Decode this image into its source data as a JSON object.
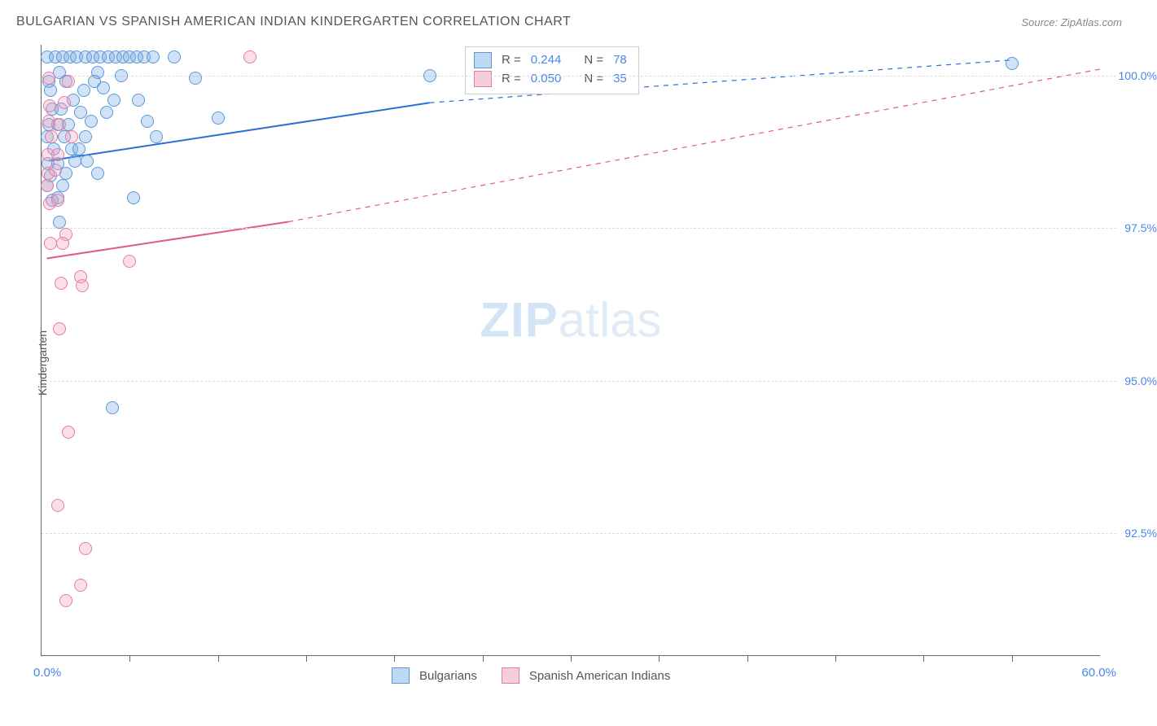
{
  "title": "BULGARIAN VS SPANISH AMERICAN INDIAN KINDERGARTEN CORRELATION CHART",
  "source": "Source: ZipAtlas.com",
  "y_axis_title": "Kindergarten",
  "watermark_zip": "ZIP",
  "watermark_atlas": "atlas",
  "chart": {
    "type": "scatter",
    "xlim": [
      0.0,
      60.0
    ],
    "ylim": [
      90.5,
      100.5
    ],
    "x_label_min": "0.0%",
    "x_label_max": "60.0%",
    "y_ticks": [
      92.5,
      95.0,
      97.5,
      100.0
    ],
    "y_tick_labels": [
      "92.5%",
      "95.0%",
      "97.5%",
      "100.0%"
    ],
    "x_ticks": [
      5,
      10,
      15,
      20,
      25,
      30,
      35,
      40,
      45,
      50,
      55
    ],
    "grid_color": "#dddddd",
    "background_color": "#ffffff",
    "marker_radius": 8,
    "marker_stroke_width": 1.5,
    "series": [
      {
        "name": "Bulgarians",
        "fill": "rgba(122,172,230,0.35)",
        "stroke": "#5a98d8",
        "swatch_fill": "#bfd9f2",
        "swatch_stroke": "#5a98d8",
        "R": "0.244",
        "N": "78",
        "trend": {
          "solid": {
            "x1": 0.4,
            "y1": 98.6,
            "x2": 22.0,
            "y2": 99.55
          },
          "dashed": {
            "x1": 22.0,
            "y1": 99.55,
            "x2": 55.0,
            "y2": 100.25
          },
          "color": "#2a6fd6",
          "width": 2
        },
        "points": [
          [
            0.3,
            100.3
          ],
          [
            0.8,
            100.3
          ],
          [
            1.2,
            100.3
          ],
          [
            1.6,
            100.3
          ],
          [
            2.0,
            100.3
          ],
          [
            2.5,
            100.3
          ],
          [
            2.9,
            100.3
          ],
          [
            3.3,
            100.3
          ],
          [
            3.8,
            100.3
          ],
          [
            4.2,
            100.3
          ],
          [
            4.6,
            100.3
          ],
          [
            5.0,
            100.3
          ],
          [
            5.4,
            100.3
          ],
          [
            5.8,
            100.3
          ],
          [
            6.3,
            100.3
          ],
          [
            7.5,
            100.3
          ],
          [
            1.0,
            100.05
          ],
          [
            3.2,
            100.05
          ],
          [
            4.5,
            100.0
          ],
          [
            0.4,
            99.9
          ],
          [
            1.4,
            99.9
          ],
          [
            3.0,
            99.9
          ],
          [
            8.7,
            99.95
          ],
          [
            22.0,
            100.0
          ],
          [
            55.0,
            100.2
          ],
          [
            0.5,
            99.75
          ],
          [
            2.4,
            99.75
          ],
          [
            3.5,
            99.8
          ],
          [
            1.8,
            99.6
          ],
          [
            4.1,
            99.6
          ],
          [
            5.5,
            99.6
          ],
          [
            0.6,
            99.45
          ],
          [
            1.1,
            99.45
          ],
          [
            2.2,
            99.4
          ],
          [
            3.7,
            99.4
          ],
          [
            0.4,
            99.2
          ],
          [
            0.9,
            99.2
          ],
          [
            1.5,
            99.2
          ],
          [
            2.8,
            99.25
          ],
          [
            6.0,
            99.25
          ],
          [
            10.0,
            99.3
          ],
          [
            0.3,
            99.0
          ],
          [
            1.3,
            99.0
          ],
          [
            2.5,
            99.0
          ],
          [
            6.5,
            99.0
          ],
          [
            0.7,
            98.8
          ],
          [
            1.7,
            98.8
          ],
          [
            2.1,
            98.8
          ],
          [
            0.35,
            98.55
          ],
          [
            0.9,
            98.55
          ],
          [
            1.9,
            98.6
          ],
          [
            2.6,
            98.6
          ],
          [
            0.5,
            98.35
          ],
          [
            1.4,
            98.4
          ],
          [
            3.2,
            98.4
          ],
          [
            0.3,
            98.2
          ],
          [
            1.2,
            98.2
          ],
          [
            0.6,
            97.95
          ],
          [
            0.9,
            98.0
          ],
          [
            5.2,
            98.0
          ],
          [
            1.0,
            97.6
          ],
          [
            4.0,
            94.55
          ]
        ]
      },
      {
        "name": "Spanish American Indians",
        "fill": "rgba(244,164,189,0.35)",
        "stroke": "#e77ba3",
        "swatch_fill": "#f6cdda",
        "swatch_stroke": "#e77ba3",
        "R": "0.050",
        "N": "35",
        "trend": {
          "solid": {
            "x1": 0.3,
            "y1": 97.0,
            "x2": 14.0,
            "y2": 97.6
          },
          "dashed": {
            "x1": 14.0,
            "y1": 97.6,
            "x2": 60.0,
            "y2": 100.1
          },
          "color": "#e05a8a",
          "width": 2
        },
        "points": [
          [
            11.8,
            100.3
          ],
          [
            0.4,
            99.95
          ],
          [
            1.5,
            99.9
          ],
          [
            0.45,
            99.5
          ],
          [
            1.3,
            99.55
          ],
          [
            0.4,
            99.25
          ],
          [
            1.0,
            99.2
          ],
          [
            0.55,
            99.0
          ],
          [
            1.7,
            99.0
          ],
          [
            0.35,
            98.7
          ],
          [
            0.9,
            98.7
          ],
          [
            0.35,
            98.4
          ],
          [
            0.8,
            98.45
          ],
          [
            0.3,
            98.2
          ],
          [
            0.45,
            97.9
          ],
          [
            0.9,
            97.95
          ],
          [
            1.4,
            97.4
          ],
          [
            0.5,
            97.25
          ],
          [
            1.2,
            97.25
          ],
          [
            5.0,
            96.95
          ],
          [
            2.2,
            96.7
          ],
          [
            1.1,
            96.6
          ],
          [
            2.3,
            96.55
          ],
          [
            1.0,
            95.85
          ],
          [
            1.5,
            94.15
          ],
          [
            0.9,
            92.95
          ],
          [
            2.5,
            92.25
          ],
          [
            2.2,
            91.65
          ],
          [
            1.4,
            91.4
          ]
        ]
      }
    ],
    "legend_top_labels": {
      "R": "R =",
      "N": "N ="
    },
    "legend_bottom": [
      "Bulgarians",
      "Spanish American Indians"
    ]
  }
}
